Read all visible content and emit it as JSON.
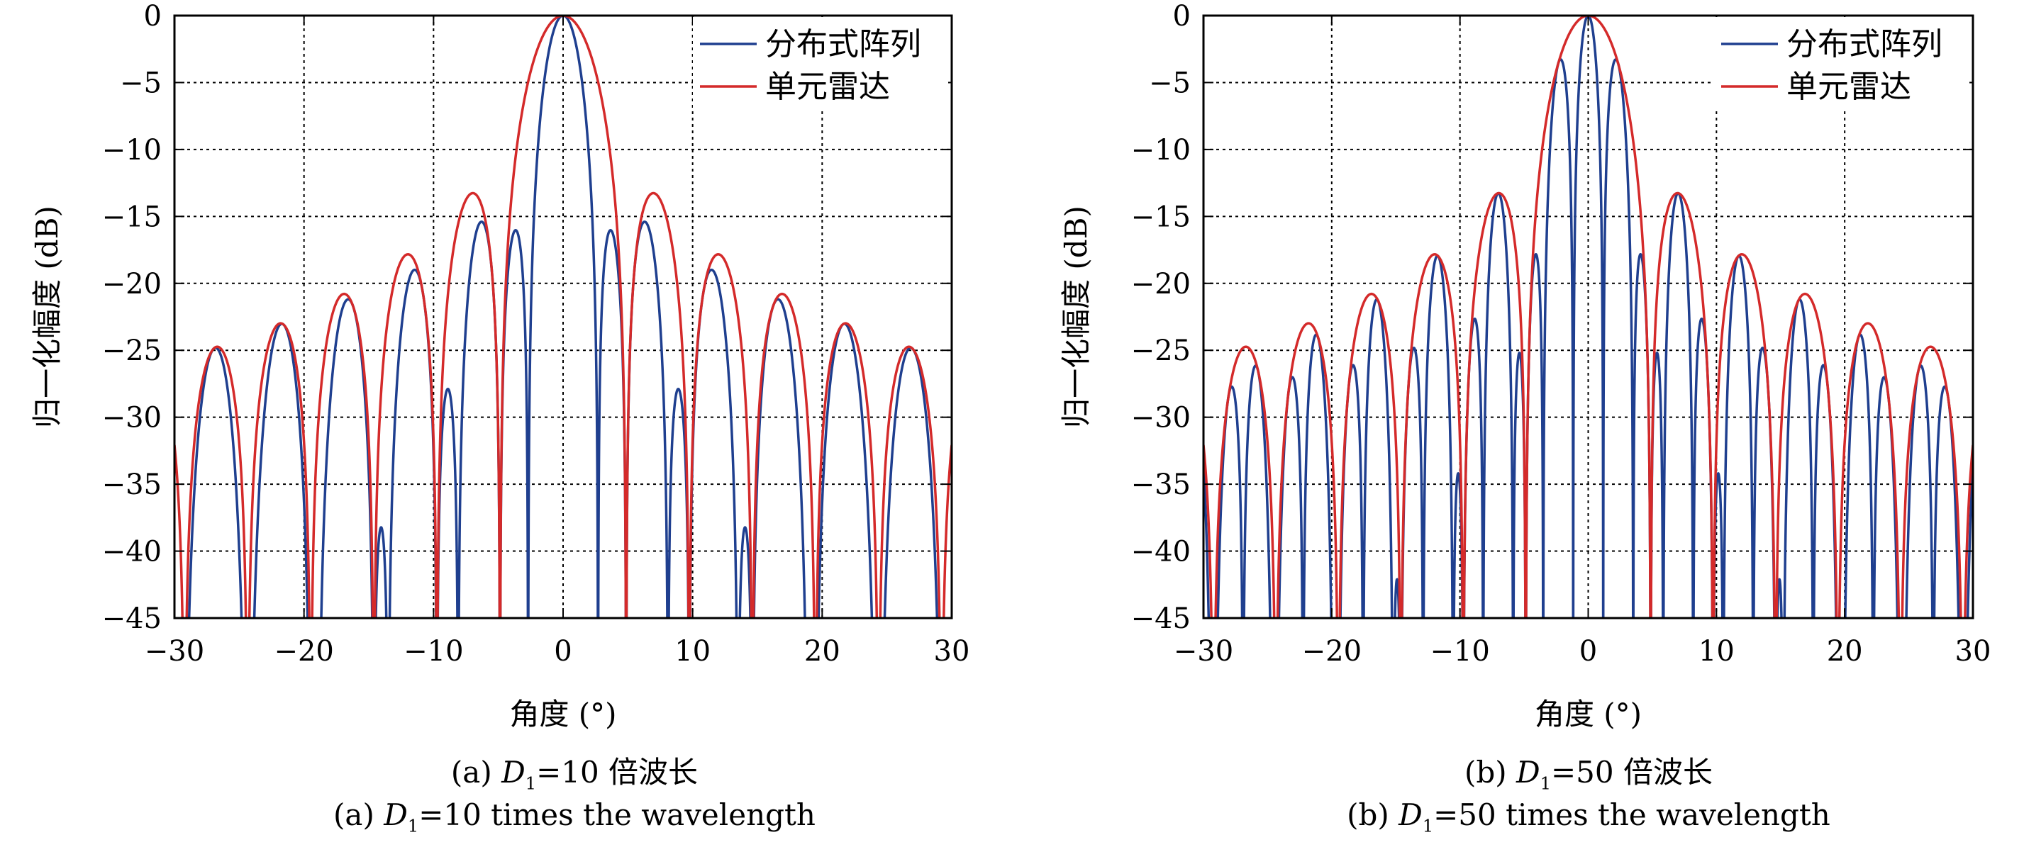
{
  "colors": {
    "distributed": "#1f3f8f",
    "single": "#d42a2a",
    "grid": "#000000"
  },
  "chart_data": [
    {
      "type": "line",
      "panel": "a",
      "xlabel": "角度 (°)",
      "ylabel": "归一化幅度 (dB)",
      "xlim": [
        -30,
        30
      ],
      "ylim": [
        -45,
        0
      ],
      "xticks": [
        -30,
        -20,
        -10,
        0,
        10,
        20,
        30
      ],
      "xtick_labels": [
        "−30",
        "−20",
        "−10",
        "0",
        "10",
        "20",
        "30"
      ],
      "yticks": [
        0,
        -5,
        -10,
        -15,
        -20,
        -25,
        -30,
        -35,
        -40,
        -45
      ],
      "ytick_labels": [
        "0",
        "−5",
        "−10",
        "−15",
        "−20",
        "−25",
        "−30",
        "−35",
        "−40",
        "−45"
      ],
      "grid": true,
      "legend_position": "top-right",
      "series": [
        {
          "name": "分布式阵列",
          "color": "#1f3f8f",
          "main_null": 4.87,
          "sub_period": 2.7,
          "sidelobe_envelope_peaks_x": [
            0,
            6.6,
            11.5,
            16.4,
            21.2,
            26.1
          ],
          "sidelobe_envelope_peaks_y": [
            0,
            -13.3,
            -17.9,
            -20.8,
            -23.0,
            -24.8
          ]
        },
        {
          "name": "单元雷达",
          "color": "#d42a2a",
          "main_null": 4.87,
          "peaks_x": [
            0,
            6.6,
            11.5,
            16.4,
            21.2,
            26.1
          ],
          "peaks_y": [
            0,
            -13.3,
            -17.9,
            -20.8,
            -23.0,
            -24.8
          ]
        }
      ],
      "caption_cn": [
        "(a) ",
        "D",
        "1",
        "=10 倍波长"
      ],
      "caption_en": [
        "(a) ",
        "D",
        "1",
        "=10 times the wavelength"
      ]
    },
    {
      "type": "line",
      "panel": "b",
      "xlabel": "角度 (°)",
      "ylabel": "归一化幅度 (dB)",
      "xlim": [
        -30,
        30
      ],
      "ylim": [
        -45,
        0
      ],
      "xticks": [
        -30,
        -20,
        -10,
        0,
        10,
        20,
        30
      ],
      "xtick_labels": [
        "−30",
        "−20",
        "−10",
        "0",
        "10",
        "20",
        "30"
      ],
      "yticks": [
        0,
        -5,
        -10,
        -15,
        -20,
        -25,
        -30,
        -35,
        -40,
        -45
      ],
      "ytick_labels": [
        "0",
        "−5",
        "−10",
        "−15",
        "−20",
        "−25",
        "−30",
        "−35",
        "−40",
        "−45"
      ],
      "grid": true,
      "legend_position": "top-right",
      "series": [
        {
          "name": "分布式阵列",
          "color": "#1f3f8f",
          "main_null": 4.87,
          "sub_period": 1.17,
          "sidelobe_envelope_peaks_x": [
            0,
            6.6,
            11.5,
            16.4,
            21.2,
            26.1
          ],
          "sidelobe_envelope_peaks_y": [
            0,
            -13.3,
            -17.9,
            -20.8,
            -23.0,
            -24.8
          ]
        },
        {
          "name": "单元雷达",
          "color": "#d42a2a",
          "main_null": 4.87,
          "peaks_x": [
            0,
            6.6,
            11.5,
            16.4,
            21.2,
            26.1
          ],
          "peaks_y": [
            0,
            -13.3,
            -17.9,
            -20.8,
            -23.0,
            -24.8
          ]
        }
      ],
      "caption_cn": [
        "(b) ",
        "D",
        "1",
        "=50 倍波长"
      ],
      "caption_en": [
        "(b) ",
        "D",
        "1",
        "=50 times the wavelength"
      ]
    }
  ]
}
